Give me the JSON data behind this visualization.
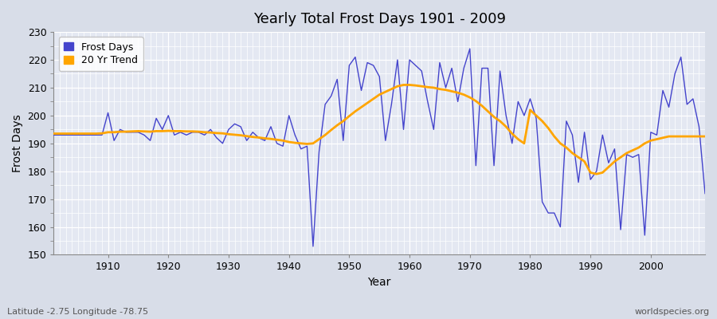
{
  "title": "Yearly Total Frost Days 1901 - 2009",
  "xlabel": "Year",
  "ylabel": "Frost Days",
  "subtitle": "Latitude -2.75 Longitude -78.75",
  "watermark": "worldspecies.org",
  "bg_color": "#d8dde8",
  "plot_bg_color": "#e4e8f2",
  "line_color": "#4444cc",
  "trend_color": "#FFA500",
  "ylim": [
    150,
    230
  ],
  "yticks": [
    150,
    160,
    170,
    180,
    190,
    200,
    210,
    220,
    230
  ],
  "xlim": [
    1901,
    2009
  ],
  "years": [
    1901,
    1902,
    1903,
    1904,
    1905,
    1906,
    1907,
    1908,
    1909,
    1910,
    1911,
    1912,
    1913,
    1914,
    1915,
    1916,
    1917,
    1918,
    1919,
    1920,
    1921,
    1922,
    1923,
    1924,
    1925,
    1926,
    1927,
    1928,
    1929,
    1930,
    1931,
    1932,
    1933,
    1934,
    1935,
    1936,
    1937,
    1938,
    1939,
    1940,
    1941,
    1942,
    1943,
    1944,
    1945,
    1946,
    1947,
    1948,
    1949,
    1950,
    1951,
    1952,
    1953,
    1954,
    1955,
    1956,
    1957,
    1958,
    1959,
    1960,
    1961,
    1962,
    1963,
    1964,
    1965,
    1966,
    1967,
    1968,
    1969,
    1970,
    1971,
    1972,
    1973,
    1974,
    1975,
    1976,
    1977,
    1978,
    1979,
    1980,
    1981,
    1982,
    1983,
    1984,
    1985,
    1986,
    1987,
    1988,
    1989,
    1990,
    1991,
    1992,
    1993,
    1994,
    1995,
    1996,
    1997,
    1998,
    1999,
    2000,
    2001,
    2002,
    2003,
    2004,
    2005,
    2006,
    2007,
    2008,
    2009
  ],
  "frost_days": [
    193,
    193,
    193,
    193,
    193,
    193,
    193,
    193,
    193,
    201,
    191,
    195,
    194,
    194,
    194,
    193,
    191,
    199,
    195,
    200,
    193,
    194,
    193,
    194,
    194,
    193,
    195,
    192,
    190,
    195,
    197,
    196,
    191,
    194,
    192,
    191,
    196,
    190,
    189,
    200,
    193,
    188,
    189,
    153,
    187,
    204,
    207,
    213,
    191,
    218,
    221,
    209,
    219,
    218,
    214,
    191,
    204,
    220,
    195,
    220,
    218,
    216,
    205,
    195,
    219,
    210,
    217,
    205,
    217,
    224,
    182,
    217,
    217,
    182,
    216,
    200,
    190,
    205,
    200,
    206,
    199,
    169,
    165,
    165,
    160,
    198,
    193,
    176,
    194,
    177,
    180,
    193,
    183,
    188,
    159,
    186,
    185,
    186,
    157,
    194,
    193,
    209,
    203,
    215,
    221,
    204,
    206,
    196,
    172
  ],
  "trend": [
    193.5,
    193.5,
    193.5,
    193.5,
    193.5,
    193.5,
    193.5,
    193.5,
    193.6,
    194.0,
    194.0,
    194.2,
    194.2,
    194.3,
    194.4,
    194.3,
    194.2,
    194.4,
    194.4,
    194.5,
    194.4,
    194.4,
    194.3,
    194.3,
    194.2,
    194.0,
    193.9,
    193.7,
    193.6,
    193.3,
    193.1,
    192.9,
    192.6,
    192.3,
    192.1,
    191.8,
    191.6,
    191.3,
    191.0,
    190.5,
    190.2,
    190.0,
    189.8,
    190.0,
    191.5,
    193.0,
    194.8,
    196.5,
    198.0,
    199.8,
    201.5,
    203.0,
    204.5,
    206.0,
    207.5,
    208.5,
    209.5,
    210.5,
    211.0,
    211.0,
    210.8,
    210.5,
    210.2,
    210.0,
    209.5,
    209.2,
    208.7,
    208.2,
    207.5,
    206.5,
    205.2,
    203.5,
    201.5,
    199.5,
    198.0,
    196.0,
    193.5,
    191.5,
    190.0,
    202.0,
    200.0,
    198.0,
    195.5,
    192.5,
    190.0,
    188.5,
    186.5,
    185.0,
    183.5,
    179.5,
    179.0,
    179.5,
    181.5,
    183.5,
    185.0,
    186.5,
    187.5,
    188.5,
    190.0,
    191.0,
    191.5,
    192.0,
    192.5,
    192.5,
    192.5,
    192.5,
    192.5,
    192.5,
    192.5
  ]
}
